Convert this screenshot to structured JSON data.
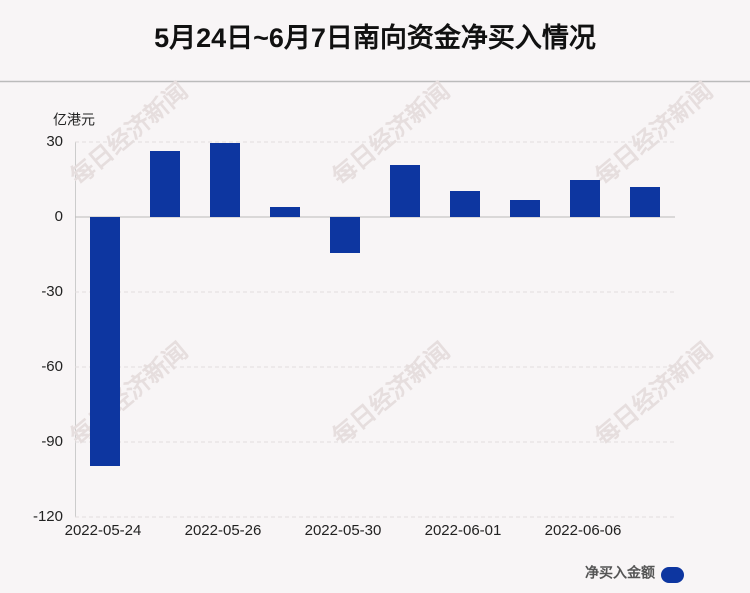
{
  "chart_data": {
    "type": "bar",
    "title": "5月24日~6月7日南向资金净买入情况",
    "y_axis_label": "亿港元",
    "watermark": "每日经济新闻",
    "categories": [
      "2022-05-24",
      null,
      "2022-05-26",
      null,
      "2022-05-30",
      null,
      "2022-06-01",
      null,
      "2022-06-06",
      null
    ],
    "series": [
      {
        "name": "净买入金额",
        "color": "#0d36a0",
        "values": [
          -99.6,
          26.4,
          29.6,
          4.0,
          -14.4,
          20.8,
          10.4,
          6.8,
          14.8,
          12.0
        ]
      }
    ],
    "ylim": [
      -120,
      30
    ],
    "yticks": [
      -120,
      -90,
      -60,
      -30,
      0,
      30
    ],
    "grid": true,
    "legend": "bottom-right"
  }
}
